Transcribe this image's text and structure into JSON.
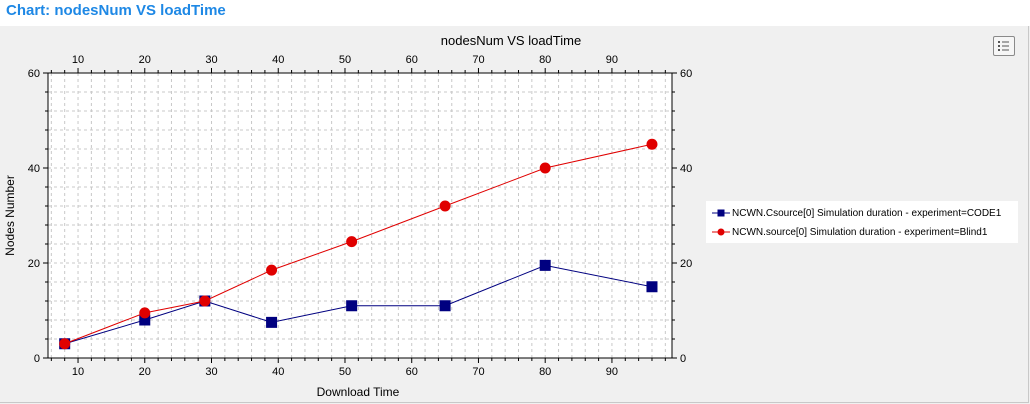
{
  "page": {
    "title": "Chart: nodesNum  VS  loadTime"
  },
  "legend_button": {
    "icon": "legend-list-icon"
  },
  "colors": {
    "title": "#1e88e5",
    "series_code1": "#000080",
    "series_blind1": "#e00000",
    "grid": "#c8c8c8",
    "panel": "#f0f0f0"
  },
  "chart_data": {
    "type": "line",
    "title": "nodesNum  VS  loadTime",
    "xlabel": "Download Time",
    "ylabel": "Nodes Number",
    "xlim": [
      5.5,
      99
    ],
    "ylim": [
      0,
      60
    ],
    "x_ticks": [
      10,
      20,
      30,
      40,
      50,
      60,
      70,
      80,
      90
    ],
    "y_ticks": [
      0,
      20,
      40,
      60
    ],
    "grid": true,
    "legend_position": "right",
    "series": [
      {
        "name": "NCWN.Csource[0] Simulation duration - experiment=CODE1",
        "marker": "square",
        "color": "#000080",
        "x": [
          8,
          20,
          29,
          39,
          51,
          65,
          80,
          96
        ],
        "y": [
          3,
          8,
          12,
          7.5,
          11,
          11,
          19.5,
          15
        ]
      },
      {
        "name": "NCWN.source[0] Simulation duration - experiment=Blind1",
        "marker": "circle",
        "color": "#e00000",
        "x": [
          8,
          20,
          29,
          39,
          51,
          65,
          80,
          96
        ],
        "y": [
          3,
          9.5,
          12,
          18.5,
          24.5,
          32,
          40,
          45
        ]
      }
    ]
  }
}
